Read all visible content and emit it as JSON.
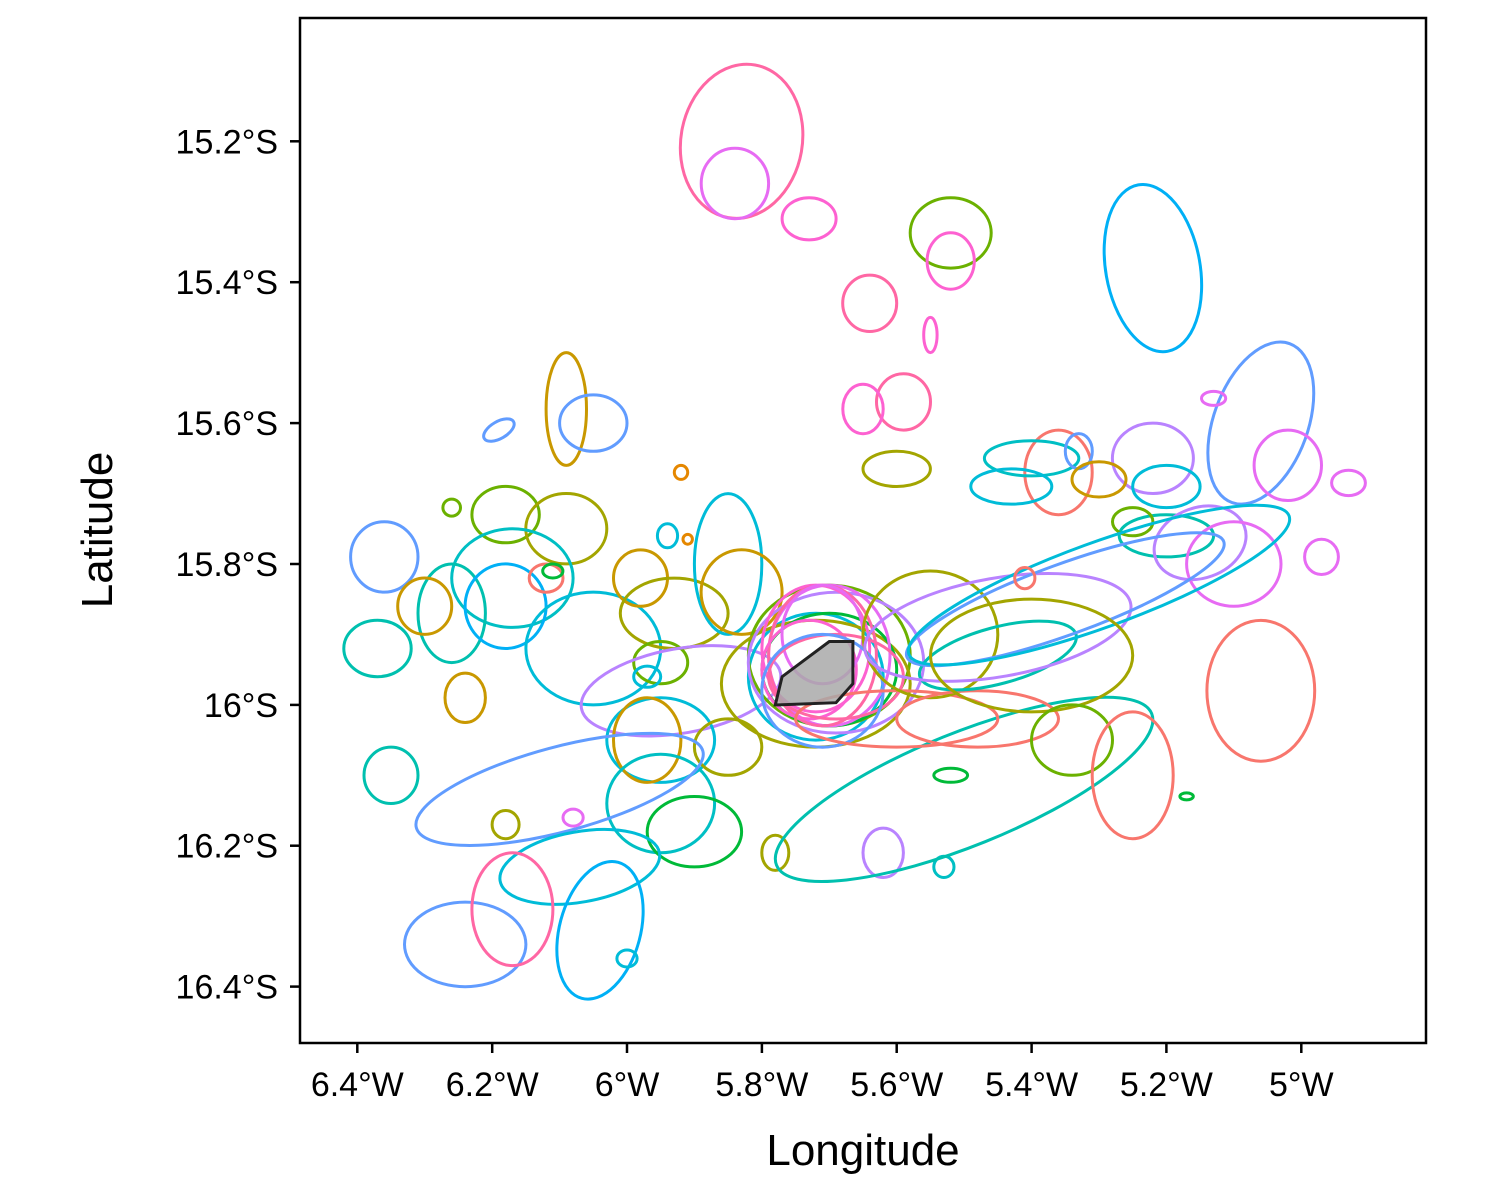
{
  "chart_data": {
    "type": "map-contours",
    "xlabel": "Longitude",
    "ylabel": "Latitude",
    "x_ticks": [
      {
        "value": -6.4,
        "label": "6.4°W"
      },
      {
        "value": -6.2,
        "label": "6.2°W"
      },
      {
        "value": -6.0,
        "label": "6°W"
      },
      {
        "value": -5.8,
        "label": "5.8°W"
      },
      {
        "value": -5.6,
        "label": "5.6°W"
      },
      {
        "value": -5.4,
        "label": "5.4°W"
      },
      {
        "value": -5.2,
        "label": "5.2°W"
      },
      {
        "value": -5.0,
        "label": "5°W"
      }
    ],
    "y_ticks": [
      {
        "value": -15.2,
        "label": "15.2°S"
      },
      {
        "value": -15.4,
        "label": "15.4°S"
      },
      {
        "value": -15.6,
        "label": "15.6°S"
      },
      {
        "value": -15.8,
        "label": "15.8°S"
      },
      {
        "value": -16.0,
        "label": "16°S"
      },
      {
        "value": -16.2,
        "label": "16.2°S"
      },
      {
        "value": -16.4,
        "label": "16.4°S"
      }
    ],
    "xlim": [
      -6.485,
      -4.815
    ],
    "ylim": [
      -16.48,
      -15.025
    ],
    "grid": false,
    "legend": "none",
    "palette": [
      "#F8766D",
      "#E58700",
      "#C99800",
      "#A3A500",
      "#6BB100",
      "#00BA38",
      "#00BF7D",
      "#00C0AF",
      "#00BCD8",
      "#00B0F6",
      "#619CFF",
      "#B983FF",
      "#E76BF3",
      "#FD61D1",
      "#FF67A4"
    ],
    "central_polygon": {
      "fill": "#A9A9A9",
      "stroke": "#222222",
      "points": [
        [
          -5.78,
          -16.0
        ],
        [
          -5.77,
          -15.96
        ],
        [
          -5.7,
          -15.91
        ],
        [
          -5.665,
          -15.91
        ],
        [
          -5.665,
          -15.97
        ],
        [
          -5.69,
          -15.997
        ],
        [
          -5.775,
          -16.0
        ]
      ]
    },
    "contours": [
      {
        "color": "#FF67A4",
        "cx": -5.83,
        "cy": -15.2,
        "rx": 0.09,
        "ry": 0.11,
        "rot": 10
      },
      {
        "color": "#E76BF3",
        "cx": -5.84,
        "cy": -15.26,
        "rx": 0.05,
        "ry": 0.05,
        "rot": 0
      },
      {
        "color": "#FD61D1",
        "cx": -5.73,
        "cy": -15.31,
        "rx": 0.04,
        "ry": 0.03,
        "rot": 0
      },
      {
        "color": "#6BB100",
        "cx": -5.52,
        "cy": -15.33,
        "rx": 0.06,
        "ry": 0.05,
        "rot": 0
      },
      {
        "color": "#FD61D1",
        "cx": -5.52,
        "cy": -15.37,
        "rx": 0.035,
        "ry": 0.04,
        "rot": 0
      },
      {
        "color": "#00B0F6",
        "cx": -5.22,
        "cy": -15.38,
        "rx": 0.07,
        "ry": 0.12,
        "rot": -10
      },
      {
        "color": "#FF67A4",
        "cx": -5.64,
        "cy": -15.43,
        "rx": 0.04,
        "ry": 0.04,
        "rot": 0
      },
      {
        "color": "#FD61D1",
        "cx": -5.55,
        "cy": -15.475,
        "rx": 0.01,
        "ry": 0.025,
        "rot": 0
      },
      {
        "color": "#619CFF",
        "cx": -5.06,
        "cy": -15.6,
        "rx": 0.07,
        "ry": 0.12,
        "rot": 20
      },
      {
        "color": "#E76BF3",
        "cx": -5.13,
        "cy": -15.565,
        "rx": 0.018,
        "ry": 0.01,
        "rot": 0
      },
      {
        "color": "#E76BF3",
        "cx": -4.93,
        "cy": -15.685,
        "rx": 0.025,
        "ry": 0.018,
        "rot": 0
      },
      {
        "color": "#C99800",
        "cx": -6.09,
        "cy": -15.58,
        "rx": 0.03,
        "ry": 0.08,
        "rot": 0
      },
      {
        "color": "#619CFF",
        "cx": -6.05,
        "cy": -15.6,
        "rx": 0.05,
        "ry": 0.04,
        "rot": 0
      },
      {
        "color": "#619CFF",
        "cx": -6.19,
        "cy": -15.61,
        "rx": 0.025,
        "ry": 0.012,
        "rot": -30
      },
      {
        "color": "#FF67A4",
        "cx": -5.59,
        "cy": -15.57,
        "rx": 0.04,
        "ry": 0.04,
        "rot": 0
      },
      {
        "color": "#FD61D1",
        "cx": -5.65,
        "cy": -15.58,
        "rx": 0.03,
        "ry": 0.035,
        "rot": 0
      },
      {
        "color": "#A3A500",
        "cx": -5.6,
        "cy": -15.665,
        "rx": 0.05,
        "ry": 0.025,
        "rot": 0
      },
      {
        "color": "#F8766D",
        "cx": -5.36,
        "cy": -15.67,
        "rx": 0.05,
        "ry": 0.06,
        "rot": 0
      },
      {
        "color": "#00BFC4",
        "cx": -5.4,
        "cy": -15.65,
        "rx": 0.07,
        "ry": 0.025,
        "rot": 0
      },
      {
        "color": "#00BCD8",
        "cx": -5.43,
        "cy": -15.69,
        "rx": 0.06,
        "ry": 0.025,
        "rot": 0
      },
      {
        "color": "#E76BF3",
        "cx": -5.02,
        "cy": -15.66,
        "rx": 0.05,
        "ry": 0.05,
        "rot": 0
      },
      {
        "color": "#B983FF",
        "cx": -5.22,
        "cy": -15.65,
        "rx": 0.06,
        "ry": 0.05,
        "rot": 0
      },
      {
        "color": "#619CFF",
        "cx": -5.33,
        "cy": -15.64,
        "rx": 0.02,
        "ry": 0.025,
        "rot": 0
      },
      {
        "color": "#C99800",
        "cx": -5.3,
        "cy": -15.68,
        "rx": 0.04,
        "ry": 0.025,
        "rot": 0
      },
      {
        "color": "#00BCD8",
        "cx": -5.2,
        "cy": -15.69,
        "rx": 0.05,
        "ry": 0.03,
        "rot": 0
      },
      {
        "color": "#00C0AF",
        "cx": -5.2,
        "cy": -15.76,
        "rx": 0.07,
        "ry": 0.03,
        "rot": 0
      },
      {
        "color": "#B983FF",
        "cx": -5.15,
        "cy": -15.77,
        "rx": 0.07,
        "ry": 0.05,
        "rot": -20
      },
      {
        "color": "#E76BF3",
        "cx": -5.1,
        "cy": -15.8,
        "rx": 0.07,
        "ry": 0.06,
        "rot": 0
      },
      {
        "color": "#E76BF3",
        "cx": -4.97,
        "cy": -15.79,
        "rx": 0.025,
        "ry": 0.025,
        "rot": 0
      },
      {
        "color": "#6BB100",
        "cx": -5.25,
        "cy": -15.74,
        "rx": 0.03,
        "ry": 0.02,
        "rot": 0
      },
      {
        "color": "#E58700",
        "cx": -5.92,
        "cy": -15.67,
        "rx": 0.01,
        "ry": 0.01,
        "rot": 0
      },
      {
        "color": "#E58700",
        "cx": -5.91,
        "cy": -15.765,
        "rx": 0.007,
        "ry": 0.007,
        "rot": 0
      },
      {
        "color": "#00BCD8",
        "cx": -5.94,
        "cy": -15.76,
        "rx": 0.015,
        "ry": 0.017,
        "rot": 0
      },
      {
        "color": "#619CFF",
        "cx": -6.36,
        "cy": -15.79,
        "rx": 0.05,
        "ry": 0.05,
        "rot": 0
      },
      {
        "color": "#6BB100",
        "cx": -6.18,
        "cy": -15.73,
        "rx": 0.05,
        "ry": 0.04,
        "rot": 0
      },
      {
        "color": "#A3A500",
        "cx": -6.09,
        "cy": -15.75,
        "rx": 0.06,
        "ry": 0.05,
        "rot": 0
      },
      {
        "color": "#00BFC4",
        "cx": -6.17,
        "cy": -15.82,
        "rx": 0.09,
        "ry": 0.07,
        "rot": 0
      },
      {
        "color": "#00C0AF",
        "cx": -6.26,
        "cy": -15.87,
        "rx": 0.05,
        "ry": 0.07,
        "rot": 0
      },
      {
        "color": "#00B0F6",
        "cx": -6.18,
        "cy": -15.86,
        "rx": 0.06,
        "ry": 0.06,
        "rot": 0
      },
      {
        "color": "#F8766D",
        "cx": -6.12,
        "cy": -15.82,
        "rx": 0.025,
        "ry": 0.02,
        "rot": 0
      },
      {
        "color": "#00BA38",
        "cx": -6.11,
        "cy": -15.81,
        "rx": 0.015,
        "ry": 0.01,
        "rot": 0
      },
      {
        "color": "#6BB100",
        "cx": -6.26,
        "cy": -15.72,
        "rx": 0.013,
        "ry": 0.012,
        "rot": 0
      },
      {
        "color": "#C99800",
        "cx": -6.3,
        "cy": -15.86,
        "rx": 0.04,
        "ry": 0.04,
        "rot": 0
      },
      {
        "color": "#00C0AF",
        "cx": -6.37,
        "cy": -15.92,
        "rx": 0.05,
        "ry": 0.04,
        "rot": 0
      },
      {
        "color": "#00BCD8",
        "cx": -6.05,
        "cy": -15.92,
        "rx": 0.1,
        "ry": 0.08,
        "rot": 0
      },
      {
        "color": "#C99800",
        "cx": -6.24,
        "cy": -15.99,
        "rx": 0.03,
        "ry": 0.035,
        "rot": 0
      },
      {
        "color": "#00C0AF",
        "cx": -6.35,
        "cy": -16.1,
        "rx": 0.04,
        "ry": 0.04,
        "rot": 0
      },
      {
        "color": "#C99800",
        "cx": -5.98,
        "cy": -15.82,
        "rx": 0.04,
        "ry": 0.04,
        "rot": 0
      },
      {
        "color": "#A3A500",
        "cx": -5.93,
        "cy": -15.87,
        "rx": 0.08,
        "ry": 0.05,
        "rot": 0
      },
      {
        "color": "#00BCD8",
        "cx": -5.85,
        "cy": -15.8,
        "rx": 0.05,
        "ry": 0.1,
        "rot": 0
      },
      {
        "color": "#C99800",
        "cx": -5.83,
        "cy": -15.84,
        "rx": 0.06,
        "ry": 0.06,
        "rot": 0
      },
      {
        "color": "#6BB100",
        "cx": -5.95,
        "cy": -15.94,
        "rx": 0.04,
        "ry": 0.03,
        "rot": 0
      },
      {
        "color": "#B983FF",
        "cx": -5.92,
        "cy": -15.98,
        "rx": 0.15,
        "ry": 0.06,
        "rot": -10
      },
      {
        "color": "#00BCD8",
        "cx": -5.97,
        "cy": -15.96,
        "rx": 0.02,
        "ry": 0.015,
        "rot": 0
      },
      {
        "color": "#00BCD8",
        "cx": -5.95,
        "cy": -16.05,
        "rx": 0.08,
        "ry": 0.06,
        "rot": 0
      },
      {
        "color": "#C99800",
        "cx": -5.97,
        "cy": -16.05,
        "rx": 0.05,
        "ry": 0.06,
        "rot": 0
      },
      {
        "color": "#A3A500",
        "cx": -5.85,
        "cy": -16.06,
        "rx": 0.05,
        "ry": 0.04,
        "rot": 0
      },
      {
        "color": "#00BFC4",
        "cx": -5.95,
        "cy": -16.14,
        "rx": 0.08,
        "ry": 0.07,
        "rot": 0
      },
      {
        "color": "#00BA38",
        "cx": -5.9,
        "cy": -16.18,
        "rx": 0.07,
        "ry": 0.05,
        "rot": 0
      },
      {
        "color": "#619CFF",
        "cx": -6.1,
        "cy": -16.12,
        "rx": 0.22,
        "ry": 0.06,
        "rot": -15
      },
      {
        "color": "#A3A500",
        "cx": -6.18,
        "cy": -16.17,
        "rx": 0.02,
        "ry": 0.02,
        "rot": 0
      },
      {
        "color": "#E76BF3",
        "cx": -6.08,
        "cy": -16.16,
        "rx": 0.015,
        "ry": 0.012,
        "rot": 0
      },
      {
        "color": "#00BCD8",
        "cx": -6.07,
        "cy": -16.23,
        "rx": 0.12,
        "ry": 0.05,
        "rot": -10
      },
      {
        "color": "#00B0F6",
        "cx": -6.04,
        "cy": -16.32,
        "rx": 0.06,
        "ry": 0.1,
        "rot": 15
      },
      {
        "color": "#00BCD8",
        "cx": -6.0,
        "cy": -16.36,
        "rx": 0.015,
        "ry": 0.012,
        "rot": 0
      },
      {
        "color": "#619CFF",
        "cx": -6.24,
        "cy": -16.34,
        "rx": 0.09,
        "ry": 0.06,
        "rot": 0
      },
      {
        "color": "#FF67A4",
        "cx": -6.17,
        "cy": -16.29,
        "rx": 0.06,
        "ry": 0.08,
        "rot": 0
      },
      {
        "color": "#A3A500",
        "cx": -5.78,
        "cy": -16.21,
        "rx": 0.02,
        "ry": 0.025,
        "rot": 0
      },
      {
        "color": "#B983FF",
        "cx": -5.62,
        "cy": -16.21,
        "rx": 0.03,
        "ry": 0.035,
        "rot": 0
      },
      {
        "color": "#00BFC4",
        "cx": -5.53,
        "cy": -16.23,
        "rx": 0.015,
        "ry": 0.015,
        "rot": 0
      },
      {
        "color": "#00C0AF",
        "cx": -5.5,
        "cy": -16.12,
        "rx": 0.3,
        "ry": 0.08,
        "rot": -22
      },
      {
        "color": "#00BCD8",
        "cx": -5.72,
        "cy": -15.96,
        "rx": 0.1,
        "ry": 0.09,
        "rot": 0
      },
      {
        "color": "#6BB100",
        "cx": -5.7,
        "cy": -15.93,
        "rx": 0.12,
        "ry": 0.1,
        "rot": 0
      },
      {
        "color": "#A3A500",
        "cx": -5.72,
        "cy": -15.97,
        "rx": 0.14,
        "ry": 0.09,
        "rot": 0
      },
      {
        "color": "#00BA38",
        "cx": -5.7,
        "cy": -15.95,
        "rx": 0.1,
        "ry": 0.08,
        "rot": 0
      },
      {
        "color": "#B983FF",
        "cx": -5.69,
        "cy": -15.94,
        "rx": 0.13,
        "ry": 0.1,
        "rot": 0
      },
      {
        "color": "#E76BF3",
        "cx": -5.7,
        "cy": -15.93,
        "rx": 0.09,
        "ry": 0.1,
        "rot": 0
      },
      {
        "color": "#FD61D1",
        "cx": -5.72,
        "cy": -15.92,
        "rx": 0.08,
        "ry": 0.09,
        "rot": 0
      },
      {
        "color": "#FF67A4",
        "cx": -5.71,
        "cy": -15.93,
        "rx": 0.08,
        "ry": 0.1,
        "rot": 0
      },
      {
        "color": "#FD61D1",
        "cx": -5.73,
        "cy": -15.95,
        "rx": 0.07,
        "ry": 0.07,
        "rot": 0
      },
      {
        "color": "#E76BF3",
        "cx": -5.71,
        "cy": -15.9,
        "rx": 0.06,
        "ry": 0.07,
        "rot": 0
      },
      {
        "color": "#FF67A4",
        "cx": -5.69,
        "cy": -15.96,
        "rx": 0.1,
        "ry": 0.06,
        "rot": 0
      },
      {
        "color": "#619CFF",
        "cx": -5.71,
        "cy": -15.98,
        "rx": 0.09,
        "ry": 0.08,
        "rot": 0
      },
      {
        "color": "#F8766D",
        "cx": -5.6,
        "cy": -16.02,
        "rx": 0.15,
        "ry": 0.04,
        "rot": 0
      },
      {
        "color": "#A3A500",
        "cx": -5.55,
        "cy": -15.9,
        "rx": 0.1,
        "ry": 0.09,
        "rot": 0
      },
      {
        "color": "#F8766D",
        "cx": -5.48,
        "cy": -16.02,
        "rx": 0.12,
        "ry": 0.04,
        "rot": 0
      },
      {
        "color": "#00C0AF",
        "cx": -5.45,
        "cy": -15.93,
        "rx": 0.12,
        "ry": 0.04,
        "rot": -15
      },
      {
        "color": "#B983FF",
        "cx": -5.45,
        "cy": -15.89,
        "rx": 0.2,
        "ry": 0.07,
        "rot": -10
      },
      {
        "color": "#619CFF",
        "cx": -5.35,
        "cy": -15.85,
        "rx": 0.25,
        "ry": 0.05,
        "rot": -20
      },
      {
        "color": "#00BCD8",
        "cx": -5.3,
        "cy": -15.83,
        "rx": 0.3,
        "ry": 0.06,
        "rot": -20
      },
      {
        "color": "#A3A500",
        "cx": -5.4,
        "cy": -15.93,
        "rx": 0.15,
        "ry": 0.08,
        "rot": 0
      },
      {
        "color": "#F8766D",
        "cx": -5.41,
        "cy": -15.82,
        "rx": 0.015,
        "ry": 0.015,
        "rot": 0
      },
      {
        "color": "#6BB100",
        "cx": -5.34,
        "cy": -16.05,
        "rx": 0.06,
        "ry": 0.05,
        "rot": 0
      },
      {
        "color": "#F8766D",
        "cx": -5.25,
        "cy": -16.1,
        "rx": 0.06,
        "ry": 0.09,
        "rot": 0
      },
      {
        "color": "#F8766D",
        "cx": -5.06,
        "cy": -15.98,
        "rx": 0.08,
        "ry": 0.1,
        "rot": 0
      },
      {
        "color": "#00BA38",
        "cx": -5.17,
        "cy": -16.13,
        "rx": 0.01,
        "ry": 0.005,
        "rot": 0
      },
      {
        "color": "#00BA38",
        "cx": -5.52,
        "cy": -16.1,
        "rx": 0.025,
        "ry": 0.01,
        "rot": 0
      }
    ]
  }
}
